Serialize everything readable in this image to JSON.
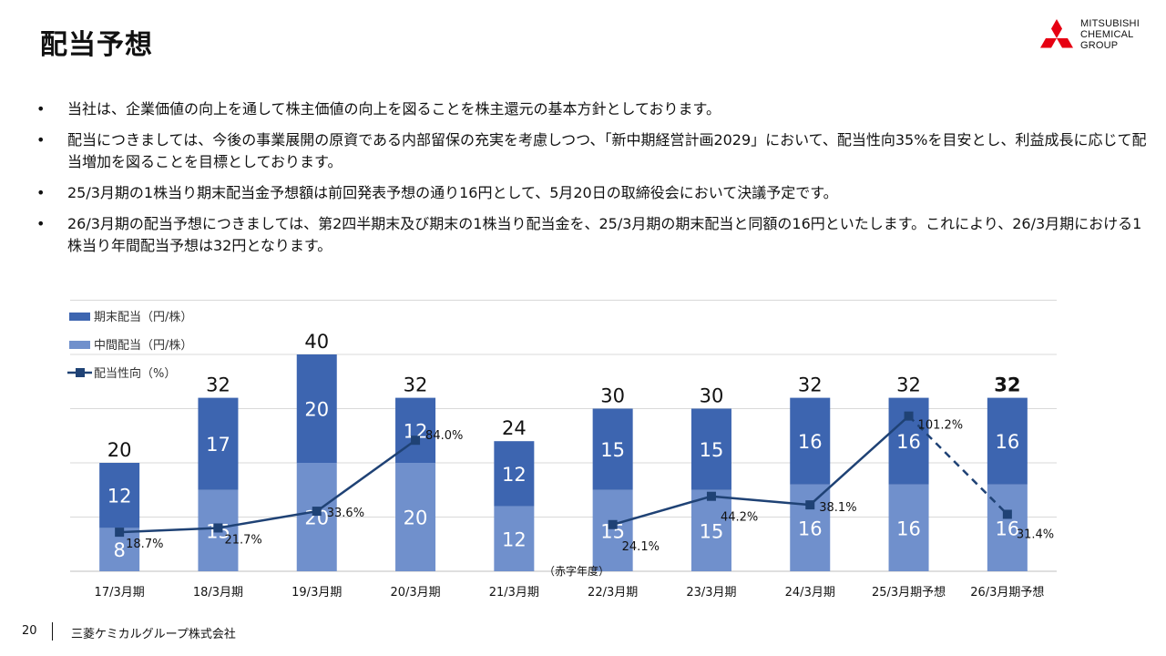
{
  "page": {
    "title": "配当予想",
    "page_number": "20",
    "company": "三菱ケミカルグループ株式会社"
  },
  "logo": {
    "line1": "MITSUBISHI",
    "line2": "CHEMICAL",
    "line3": "GROUP",
    "color": "#e60012"
  },
  "bullets": [
    {
      "marker": "•",
      "text": "当社は、企業価値の向上を通して株主価値の向上を図ることを株主還元の基本方針としております。"
    },
    {
      "marker": "•",
      "text": "配当につきましては、今後の事業展開の原資である内部留保の充実を考慮しつつ、「新中期経営計画2029」において、配当性向35%を目安とし、利益成長に応じて配当増加を図ることを目標としております。"
    },
    {
      "marker": "•",
      "text": "25/3月期の1株当り期末配当金予想額は前回発表予想の通り16円として、5月20日の取締役会において決議予定です。"
    },
    {
      "marker": "•",
      "text": "26/3月期の配当予想につきましては、第2四半期末及び期末の1株当り配当金を、25/3月期の期末配当と同額の16円といたします。これにより、26/3月期における1株当り年間配当予想は32円となります。"
    }
  ],
  "chart_data": {
    "type": "bar",
    "stacked": true,
    "categories": [
      "17/3月期",
      "18/3月期",
      "19/3月期",
      "20/3月期",
      "21/3月期",
      "22/3月期",
      "23/3月期",
      "24/3月期",
      "25/3月期予想",
      "26/3月期予想"
    ],
    "series": [
      {
        "name": "中間配当（円/株）",
        "values": [
          8,
          15,
          20,
          20,
          12,
          15,
          15,
          16,
          16,
          16
        ],
        "color": "#7090cc"
      },
      {
        "name": "期末配当（円/株）",
        "values": [
          12,
          17,
          20,
          12,
          12,
          15,
          15,
          16,
          16,
          16
        ],
        "color": "#3d65b0"
      }
    ],
    "totals": [
      20,
      32,
      40,
      32,
      24,
      30,
      30,
      32,
      32,
      32
    ],
    "payout_ratio": {
      "name": "配当性向（%）",
      "values": [
        18.7,
        21.7,
        33.6,
        84.0,
        null,
        24.1,
        44.2,
        38.1,
        101.2,
        31.4
      ],
      "labels": [
        "18.7%",
        "21.7%",
        "33.6%",
        "84.0%",
        "",
        "24.1%",
        "44.2%",
        "38.1%",
        "101.2%",
        "31.4%"
      ],
      "color": "#1f4275",
      "dashed_last_segment": true
    },
    "annotation": "（赤字年度）",
    "ylim": [
      0,
      50
    ],
    "grid": true,
    "legend_position": "top-left",
    "title": "",
    "xlabel": "",
    "ylabel": ""
  }
}
